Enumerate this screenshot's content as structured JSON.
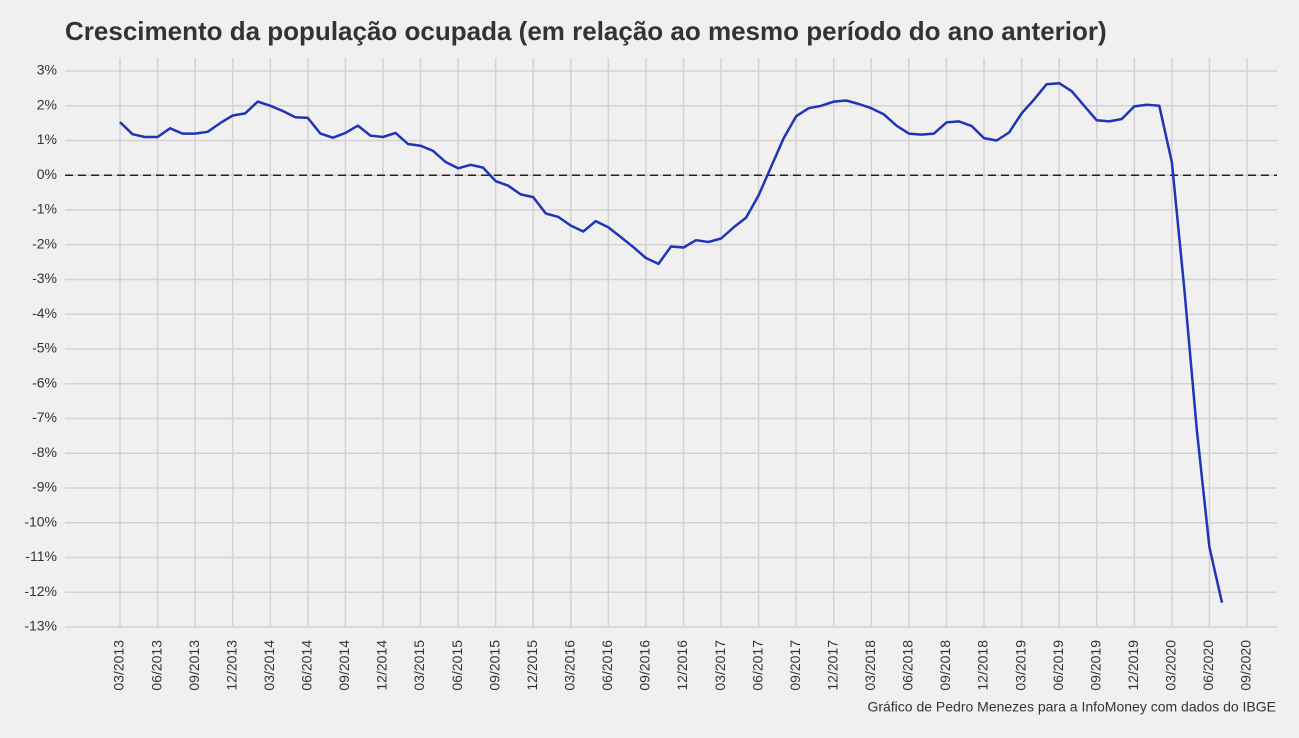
{
  "chart_data": {
    "type": "line",
    "title": "Crescimento da população ocupada (em relação ao mesmo período do ano anterior)",
    "caption": "Gráfico de Pedro Menezes para a InfoMoney com dados do IBGE",
    "categories": [
      "03/2013",
      null,
      null,
      "06/2013",
      null,
      null,
      "09/2013",
      null,
      null,
      "12/2013",
      null,
      null,
      "03/2014",
      null,
      null,
      "06/2014",
      null,
      null,
      "09/2014",
      null,
      null,
      "12/2014",
      null,
      null,
      "03/2015",
      null,
      null,
      "06/2015",
      null,
      null,
      "09/2015",
      null,
      null,
      "12/2015",
      null,
      null,
      "03/2016",
      null,
      null,
      "06/2016",
      null,
      null,
      "09/2016",
      null,
      null,
      "12/2016",
      null,
      null,
      "03/2017",
      null,
      null,
      "06/2017",
      null,
      null,
      "09/2017",
      null,
      null,
      "12/2017",
      null,
      null,
      "03/2018",
      null,
      null,
      "06/2018",
      null,
      null,
      "09/2018",
      null,
      null,
      "12/2018",
      null,
      null,
      "03/2019",
      null,
      null,
      "06/2019",
      null,
      null,
      "09/2019",
      null,
      null,
      "12/2019",
      null,
      null,
      "03/2020",
      null,
      null,
      "06/2020",
      null,
      null,
      "09/2020"
    ],
    "series": [
      {
        "color": "#1f35b5",
        "values": [
          1.53,
          1.18,
          1.1,
          1.1,
          1.35,
          1.2,
          1.2,
          1.25,
          1.5,
          1.72,
          1.78,
          2.12,
          2.0,
          1.85,
          1.67,
          1.65,
          1.2,
          1.08,
          1.22,
          1.43,
          1.14,
          1.1,
          1.22,
          0.9,
          0.85,
          0.7,
          0.38,
          0.2,
          0.3,
          0.22,
          -0.17,
          -0.3,
          -0.55,
          -0.63,
          -1.1,
          -1.2,
          -1.45,
          -1.62,
          -1.32,
          -1.5,
          -1.78,
          -2.07,
          -2.38,
          -2.55,
          -2.05,
          -2.08,
          -1.87,
          -1.92,
          -1.82,
          -1.5,
          -1.22,
          -0.58,
          0.25,
          1.07,
          1.7,
          1.93,
          2.0,
          2.12,
          2.15,
          2.05,
          1.93,
          1.75,
          1.43,
          1.2,
          1.17,
          1.2,
          1.52,
          1.55,
          1.42,
          1.07,
          1.0,
          1.23,
          1.78,
          2.18,
          2.62,
          2.65,
          2.42,
          2.0,
          1.58,
          1.55,
          1.62,
          1.98,
          2.03,
          2.0,
          0.37,
          -3.3,
          -7.35,
          -10.7,
          -12.3,
          null,
          null
        ]
      }
    ],
    "ylim": [
      -13,
      3
    ],
    "yticks": [
      {
        "value": 3,
        "label": "3%"
      },
      {
        "value": 2,
        "label": "2%"
      },
      {
        "value": 1,
        "label": "1%"
      },
      {
        "value": 0,
        "label": "0%"
      },
      {
        "value": -1,
        "label": "-1%"
      },
      {
        "value": -2,
        "label": "-2%"
      },
      {
        "value": -3,
        "label": "-3%"
      },
      {
        "value": -4,
        "label": "-4%"
      },
      {
        "value": -5,
        "label": "-5%"
      },
      {
        "value": -6,
        "label": "-6%"
      },
      {
        "value": -7,
        "label": "-7%"
      },
      {
        "value": -8,
        "label": "-8%"
      },
      {
        "value": -9,
        "label": "-9%"
      },
      {
        "value": -10,
        "label": "-10%"
      },
      {
        "value": -11,
        "label": "-11%"
      },
      {
        "value": -12,
        "label": "-12%"
      },
      {
        "value": -13,
        "label": "-13%"
      }
    ],
    "reference_line": 0,
    "grid": true
  }
}
